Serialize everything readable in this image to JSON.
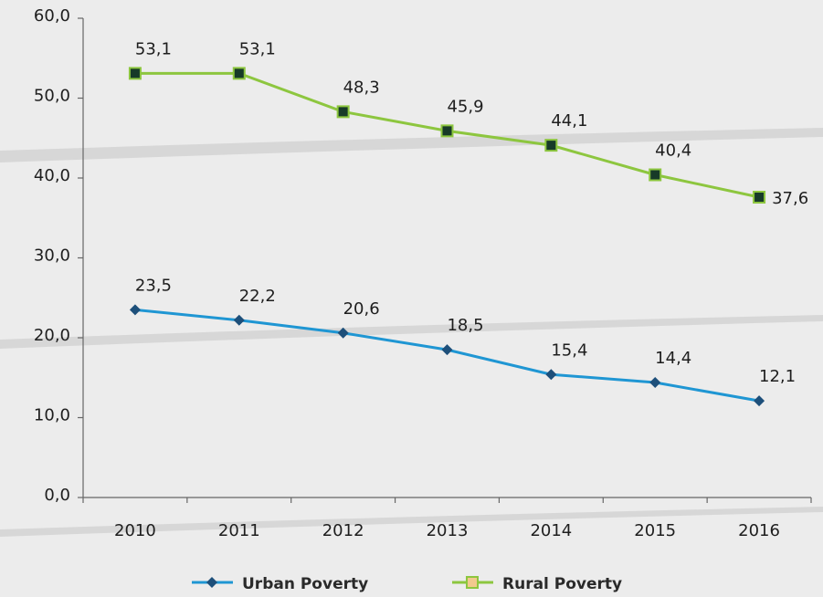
{
  "chart_data": {
    "type": "line",
    "categories": [
      "2010",
      "2011",
      "2012",
      "2013",
      "2014",
      "2015",
      "2016"
    ],
    "series": [
      {
        "name": "Urban Poverty",
        "color": "#1f96d3",
        "marker_color": "#1d4f7a",
        "values": [
          23.5,
          22.2,
          20.6,
          18.5,
          15.4,
          14.4,
          12.1
        ],
        "value_labels": [
          "23,5",
          "22,2",
          "20,6",
          "18,5",
          "15,4",
          "14,4",
          "12,1"
        ]
      },
      {
        "name": "Rural Poverty",
        "color": "#8dc63f",
        "marker_color": "#173a28",
        "values": [
          53.1,
          53.1,
          48.3,
          45.9,
          44.1,
          40.4,
          37.6
        ],
        "value_labels": [
          "53,1",
          "53,1",
          "48,3",
          "45,9",
          "44,1",
          "40,4",
          "37,6"
        ]
      }
    ],
    "ylim": [
      0,
      60
    ],
    "yticks": [
      {
        "value": 0,
        "label": "0,0"
      },
      {
        "value": 10,
        "label": "10,0"
      },
      {
        "value": 20,
        "label": "20,0"
      },
      {
        "value": 30,
        "label": "30,0"
      },
      {
        "value": 40,
        "label": "40,0"
      },
      {
        "value": 50,
        "label": "50,0"
      },
      {
        "value": 60,
        "label": "60,0"
      }
    ],
    "grid": false,
    "legend": "bottom"
  }
}
